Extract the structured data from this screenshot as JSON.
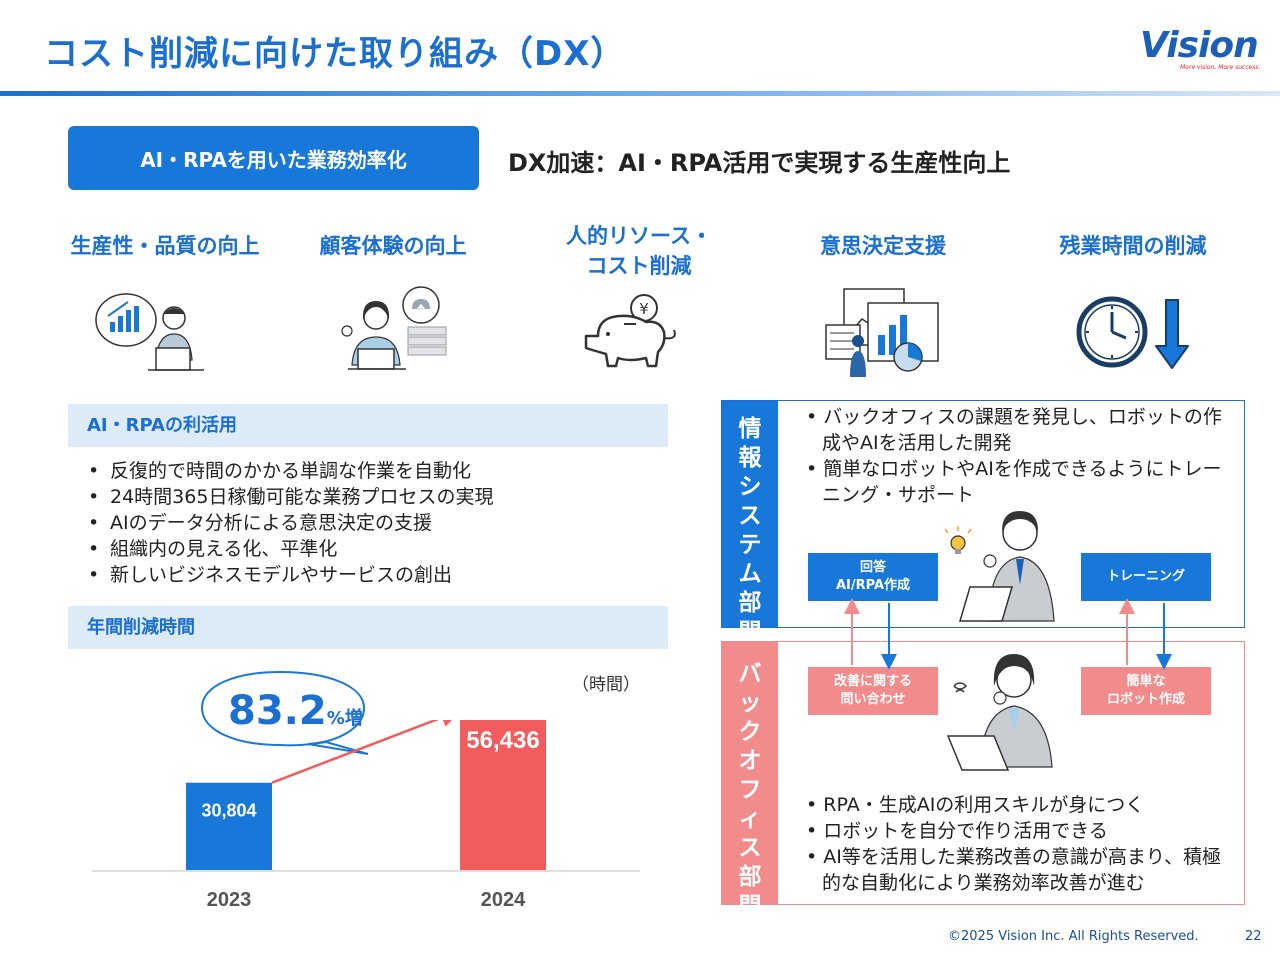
{
  "page": {
    "title": "コスト削減に向けた取り組み（DX）",
    "logo_text": "Vision",
    "logo_tagline": "More vision, More success.",
    "footer_copyright": "©2025 Vision Inc. All Rights Reserved.",
    "page_number": "22"
  },
  "hero": {
    "pill_label": "AI・RPAを用いた業務効率化",
    "headline": "DX加速：AI・RPA活用で実現する生産性向上"
  },
  "benefits": [
    {
      "label": "生産性・品質の向上",
      "icon": "productivity-icon"
    },
    {
      "label": "顧客体験の向上",
      "icon": "customer-experience-icon"
    },
    {
      "label_line1": "人的リソース・",
      "label_line2": "コスト削減",
      "icon": "piggy-bank-icon"
    },
    {
      "label": "意思決定支援",
      "icon": "decision-support-icon"
    },
    {
      "label": "残業時間の削減",
      "icon": "clock-down-icon"
    }
  ],
  "utilization": {
    "heading": "AI・RPAの利活用",
    "items": [
      "反復的で時間のかかる単調な作業を自動化",
      "24時間365日稼働可能な業務プロセスの実現",
      "AIのデータ分析による意思決定の支援",
      "組織内の見える化、平準化",
      "新しいビジネスモデルやサービスの創出"
    ]
  },
  "annual_reduction": {
    "heading": "年間削減時間",
    "unit": "（時間）",
    "growth_value": "83.2",
    "growth_suffix": "%増"
  },
  "chart_data": {
    "type": "bar",
    "categories": [
      "2023",
      "2024"
    ],
    "values": [
      30804,
      56436
    ],
    "value_labels": [
      "30,804",
      "56,436"
    ],
    "bar_colors": [
      "#1878d9",
      "#f25c5c"
    ],
    "ylabel": "（時間）",
    "ylim": [
      0,
      60000
    ],
    "grid": false
  },
  "it_department": {
    "label": "情報システム部門",
    "items": [
      "バックオフィスの課題を発見し、ロボットの作成やAIを活用した開発",
      "簡単なロボットやAIを作成できるようにトレーニング・サポート"
    ],
    "tag_left_line1": "回答",
    "tag_left_line2": "AI/RPA作成",
    "tag_right": "トレーニング"
  },
  "back_office": {
    "label": "バックオフィス部門",
    "tag_left_line1": "改善に関する",
    "tag_left_line2": "問い合わせ",
    "tag_right_line1": "簡単な",
    "tag_right_line2": "ロボット作成",
    "items": [
      "RPA・生成AIの利用スキルが身につく",
      "ロボットを自分で作り活用できる",
      "AI等を活用した業務改善の意識が高まり、積極的な自動化により業務効率改善が進む"
    ]
  }
}
